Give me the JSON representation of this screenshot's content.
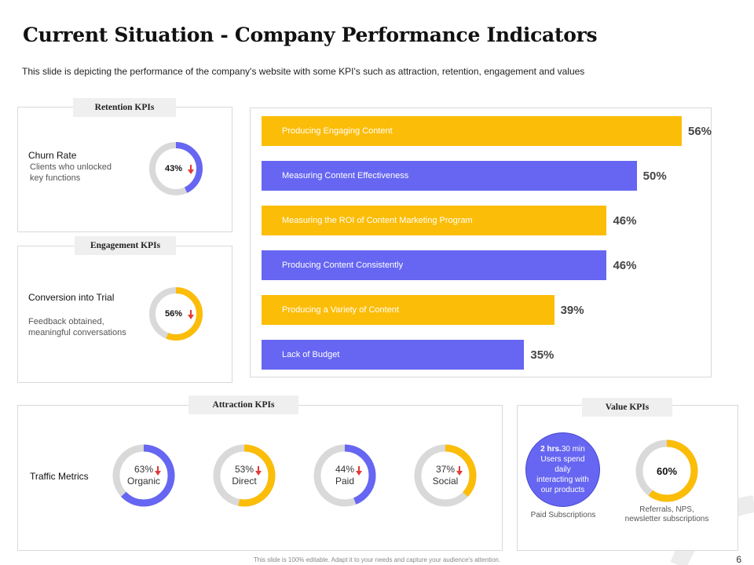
{
  "title": "Current Situation - Company Performance Indicators",
  "subtitle": "This slide is depicting the performance  of the company's website with some KPI's such as attraction, retention, engagement  and values",
  "colors": {
    "blue": "#6666f2",
    "yellow": "#fbbd08",
    "track": "#d9d9d9",
    "arrow": "#e53935"
  },
  "retention": {
    "tag": "Retention KPIs",
    "metric": "Churn Rate",
    "desc_line1": "Clients who unlocked",
    "desc_line2": "key functions",
    "percent": 43,
    "percent_label": "43%"
  },
  "engagement": {
    "tag": "Engagement KPIs",
    "metric": "Conversion  into Trial",
    "desc_line1": "Feedback obtained,",
    "desc_line2": "meaningful conversations",
    "percent": 56,
    "percent_label": "56%"
  },
  "chart_data": {
    "type": "bar",
    "orientation": "horizontal",
    "categories": [
      "Producing Engaging Content",
      "Measuring Content Effectiveness",
      "Measuring the ROI of Content Marketing Program",
      "Producing Content Consistently",
      "Producing a Variety  of Content",
      "Lack of Budget"
    ],
    "values": [
      56,
      50,
      46,
      46,
      39,
      35
    ],
    "labels": [
      "56%",
      "50%",
      "46%",
      "46%",
      "39%",
      "35%"
    ],
    "bar_colors": [
      "#fbbd08",
      "#6666f2",
      "#fbbd08",
      "#6666f2",
      "#fbbd08",
      "#6666f2"
    ],
    "xlim": [
      0,
      60
    ]
  },
  "attraction": {
    "tag": "Attraction KPIs",
    "row_label": "Traffic  Metrics",
    "items": [
      {
        "percent": 63,
        "percent_label": "63%",
        "label": "Organic",
        "color": "#6666f2"
      },
      {
        "percent": 53,
        "percent_label": "53%",
        "label": "Direct",
        "color": "#fbbd08"
      },
      {
        "percent": 44,
        "percent_label": "44%",
        "label": "Paid",
        "color": "#6666f2"
      },
      {
        "percent": 37,
        "percent_label": "37%",
        "label": "Social",
        "color": "#fbbd08"
      }
    ]
  },
  "value": {
    "tag": "Value KPIs",
    "circle_bold": "2 hrs.",
    "circle_rest": "30 min",
    "circle_line2": "Users spend",
    "circle_line3": "daily",
    "circle_line4": "interacting with",
    "circle_line5": "our products",
    "circle_caption": "Paid Subscriptions",
    "donut_percent": 60,
    "donut_label": "60%",
    "donut_caption_line1": "Referrals, NPS,",
    "donut_caption_line2": "newsletter subscriptions"
  },
  "footer": "This slide is 100% editable. Adapt it to your needs and capture your audience's attention.",
  "page_number": "6"
}
